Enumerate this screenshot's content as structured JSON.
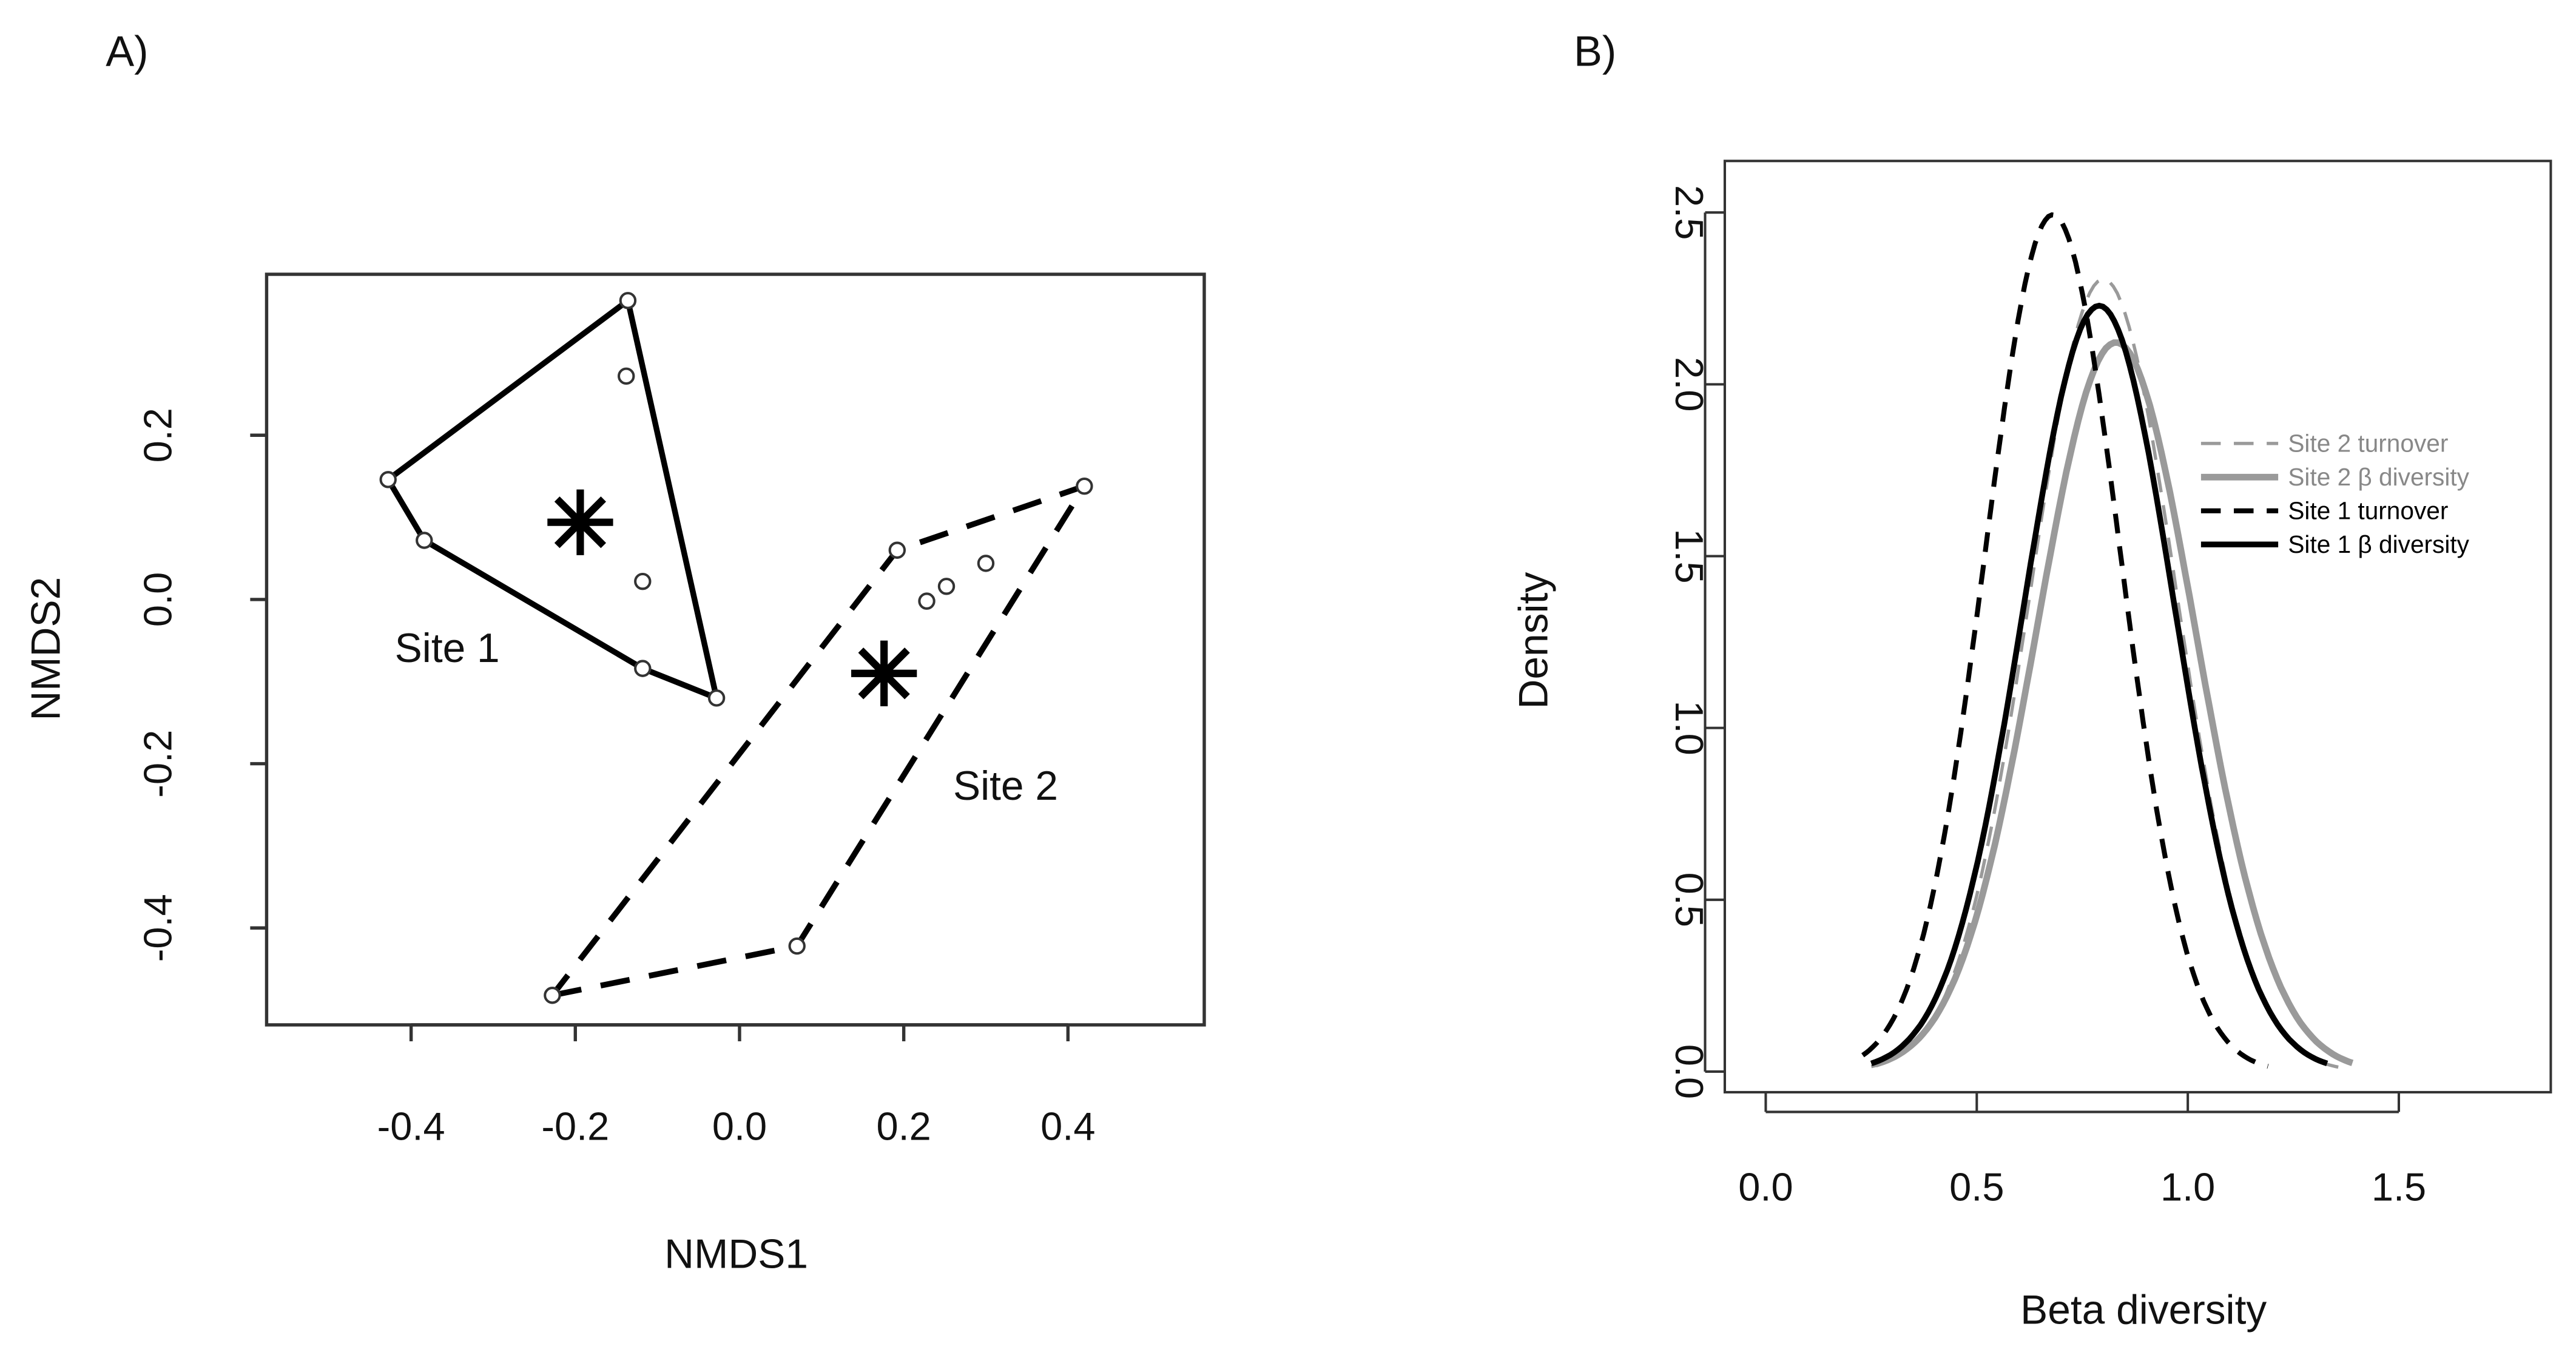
{
  "chart_data": [
    {
      "type": "scatter",
      "panel_label": "A)",
      "xlabel": "NMDS1",
      "ylabel": "NMDS2",
      "xlim": [
        -0.576,
        0.566
      ],
      "ylim": [
        -0.518,
        0.396
      ],
      "xticks": [
        -0.4,
        -0.2,
        0.0,
        0.2,
        0.4
      ],
      "xtick_labels": [
        "-0.4",
        "-0.2",
        "0.0",
        "0.2",
        "0.4"
      ],
      "yticks": [
        -0.4,
        -0.2,
        0.0,
        0.2
      ],
      "ytick_labels": [
        "-0.4",
        "-0.2",
        "0.0",
        "0.2"
      ],
      "grid": false,
      "groups": [
        {
          "name": "Site 1",
          "hull_style": "solid",
          "label_pos": [
            -0.356,
            -0.056
          ],
          "hull": [
            [
              -0.136,
              0.364
            ],
            [
              -0.428,
              0.146
            ],
            [
              -0.384,
              0.072
            ],
            [
              -0.118,
              -0.084
            ],
            [
              -0.028,
              -0.12
            ]
          ],
          "interior": [
            [
              -0.138,
              0.272
            ],
            [
              -0.118,
              0.022
            ]
          ],
          "centroid": [
            -0.194,
            0.094
          ]
        },
        {
          "name": "Site 2",
          "hull_style": "dashed",
          "label_pos": [
            0.324,
            -0.224
          ],
          "hull": [
            [
              -0.228,
              -0.482
            ],
            [
              0.07,
              -0.422
            ],
            [
              0.42,
              0.138
            ],
            [
              0.192,
              0.06
            ]
          ],
          "interior": [
            [
              0.228,
              -0.002
            ],
            [
              0.252,
              0.016
            ],
            [
              0.3,
              0.044
            ]
          ],
          "centroid": [
            0.176,
            -0.09
          ]
        }
      ]
    },
    {
      "type": "line",
      "panel_label": "B)",
      "xlabel": "Beta diversity",
      "ylabel": "Density",
      "xlim": [
        -0.097,
        1.86
      ],
      "ylim": [
        -0.06,
        2.65
      ],
      "xticks": [
        0.0,
        0.5,
        1.0,
        1.5
      ],
      "xtick_labels": [
        "0.0",
        "0.5",
        "1.0",
        "1.5"
      ],
      "yticks": [
        0.0,
        0.5,
        1.0,
        1.5,
        2.0,
        2.5
      ],
      "ytick_labels": [
        "0.0",
        "0.5",
        "1.0",
        "1.5",
        "2.0",
        "2.5"
      ],
      "grid": false,
      "legend_position": "right",
      "series": [
        {
          "name": "Site 2 turnover",
          "color": "#9a9a9a",
          "style": "dashed",
          "width": 2,
          "mean": 0.8,
          "sd": 0.173,
          "range": [
            0.25,
            1.36
          ]
        },
        {
          "name": "Site 2 β diversity",
          "color": "#9a9a9a",
          "style": "solid",
          "width": 4,
          "mean": 0.83,
          "sd": 0.188,
          "range": [
            0.26,
            1.39
          ]
        },
        {
          "name": "Site 1 turnover",
          "color": "#000000",
          "style": "dashed",
          "width": 3,
          "mean": 0.68,
          "sd": 0.16,
          "range": [
            0.23,
            1.19
          ]
        },
        {
          "name": "Site 1 β diversity",
          "color": "#000000",
          "style": "solid",
          "width": 3.5,
          "mean": 0.79,
          "sd": 0.179,
          "range": [
            0.25,
            1.33
          ]
        }
      ]
    }
  ]
}
